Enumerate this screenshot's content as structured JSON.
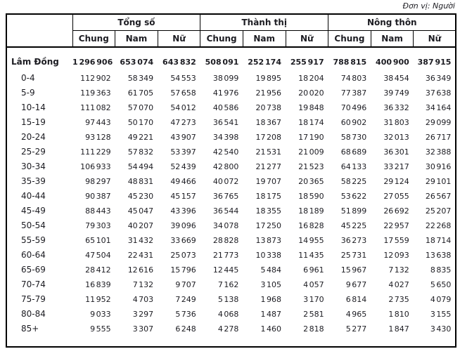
{
  "unit_note": "Đơn vị: Người",
  "table": {
    "col_groups": [
      {
        "label": "Tổng số"
      },
      {
        "label": "Thành thị"
      },
      {
        "label": "Nông thôn"
      }
    ],
    "sub_headers": [
      "Chung",
      "Nam",
      "Nữ"
    ],
    "rows": [
      {
        "label": "Lâm Đồng",
        "bold": true,
        "values": [
          "1 296 906",
          "653 074",
          "643 832",
          "508 091",
          "252 174",
          "255 917",
          "788 815",
          "400 900",
          "387 915"
        ]
      },
      {
        "label": "0-4",
        "values": [
          "112 902",
          "58 349",
          "54 553",
          "38 099",
          "19 895",
          "18 204",
          "74 803",
          "38 454",
          "36 349"
        ]
      },
      {
        "label": "5-9",
        "values": [
          "119 363",
          "61 705",
          "57 658",
          "41 976",
          "21 956",
          "20 020",
          "77 387",
          "39 749",
          "37 638"
        ]
      },
      {
        "label": "10-14",
        "values": [
          "111 082",
          "57 070",
          "54 012",
          "40 586",
          "20 738",
          "19 848",
          "70 496",
          "36 332",
          "34 164"
        ]
      },
      {
        "label": "15-19",
        "values": [
          "97 443",
          "50 170",
          "47 273",
          "36 541",
          "18 367",
          "18 174",
          "60 902",
          "31 803",
          "29 099"
        ]
      },
      {
        "label": "20-24",
        "values": [
          "93 128",
          "49 221",
          "43 907",
          "34 398",
          "17 208",
          "17 190",
          "58 730",
          "32 013",
          "26 717"
        ]
      },
      {
        "label": "25-29",
        "values": [
          "111 229",
          "57 832",
          "53 397",
          "42 540",
          "21 531",
          "21 009",
          "68 689",
          "36 301",
          "32 388"
        ]
      },
      {
        "label": "30-34",
        "values": [
          "106 933",
          "54 494",
          "52 439",
          "42 800",
          "21 277",
          "21 523",
          "64 133",
          "33 217",
          "30 916"
        ]
      },
      {
        "label": "35-39",
        "values": [
          "98 297",
          "48 831",
          "49 466",
          "40 072",
          "19 707",
          "20 365",
          "58 225",
          "29 124",
          "29 101"
        ]
      },
      {
        "label": "40-44",
        "values": [
          "90 387",
          "45 230",
          "45 157",
          "36 765",
          "18 175",
          "18 590",
          "53 622",
          "27 055",
          "26 567"
        ]
      },
      {
        "label": "45-49",
        "values": [
          "88 443",
          "45 047",
          "43 396",
          "36 544",
          "18 355",
          "18 189",
          "51 899",
          "26 692",
          "25 207"
        ]
      },
      {
        "label": "50-54",
        "values": [
          "79 303",
          "40 207",
          "39 096",
          "34 078",
          "17 250",
          "16 828",
          "45 225",
          "22 957",
          "22 268"
        ]
      },
      {
        "label": "55-59",
        "values": [
          "65 101",
          "31 432",
          "33 669",
          "28 828",
          "13 873",
          "14 955",
          "36 273",
          "17 559",
          "18 714"
        ]
      },
      {
        "label": "60-64",
        "values": [
          "47 504",
          "22 431",
          "25 073",
          "21 773",
          "10 338",
          "11 435",
          "25 731",
          "12 093",
          "13 638"
        ]
      },
      {
        "label": "65-69",
        "values": [
          "28 412",
          "12 616",
          "15 796",
          "12 445",
          "5 484",
          "6 961",
          "15 967",
          "7 132",
          "8 835"
        ]
      },
      {
        "label": "70-74",
        "values": [
          "16 839",
          "7 132",
          "9 707",
          "7 162",
          "3 105",
          "4 057",
          "9 677",
          "4 027",
          "5 650"
        ]
      },
      {
        "label": "75-79",
        "values": [
          "11 952",
          "4 703",
          "7 249",
          "5 138",
          "1 968",
          "3 170",
          "6 814",
          "2 735",
          "4 079"
        ]
      },
      {
        "label": "80-84",
        "values": [
          "9 033",
          "3 297",
          "5 736",
          "4 068",
          "1 487",
          "2 581",
          "4 965",
          "1 810",
          "3 155"
        ]
      },
      {
        "label": "85+",
        "values": [
          "9 555",
          "3 307",
          "6 248",
          "4 278",
          "1 460",
          "2 818",
          "5 277",
          "1 847",
          "3 430"
        ]
      }
    ]
  }
}
